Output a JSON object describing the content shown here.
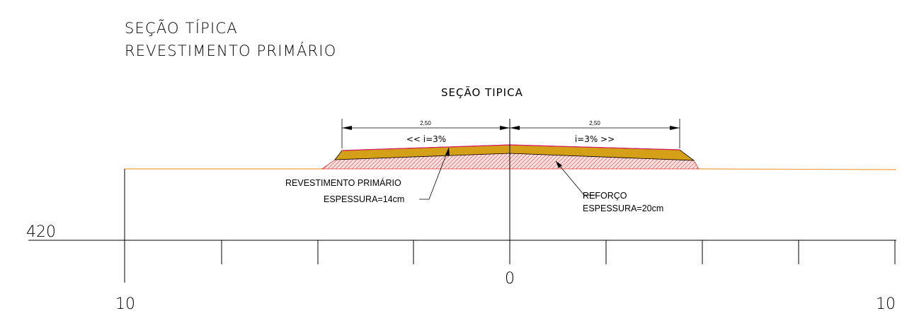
{
  "title": {
    "line1": "SEÇÃO TÍPICA",
    "line2": "REVESTIMENTO PRIMÁRIO",
    "subtitle": "SEÇÃO TIPICA"
  },
  "dimensions": {
    "left_width": "2,50",
    "right_width": "2,50",
    "left_slope": "<< i=3%",
    "right_slope": "i=3% >>"
  },
  "callouts": {
    "surface_layer_name": "REVESTIMENTO PRIMÁRIO",
    "surface_layer_thickness": "ESPESSURA=14cm",
    "base_layer_name": "REFORÇO",
    "base_layer_thickness": "ESPESSURA=20cm"
  },
  "grid": {
    "elevation_label": "420",
    "station_center": "0",
    "station_left": "10",
    "station_right": "10"
  },
  "colors": {
    "surface_fill": "#d4a017",
    "surface_top_line": "#d81b60",
    "hatch": "#e53935",
    "terrain": "#f0a040",
    "lines": "#000000"
  }
}
